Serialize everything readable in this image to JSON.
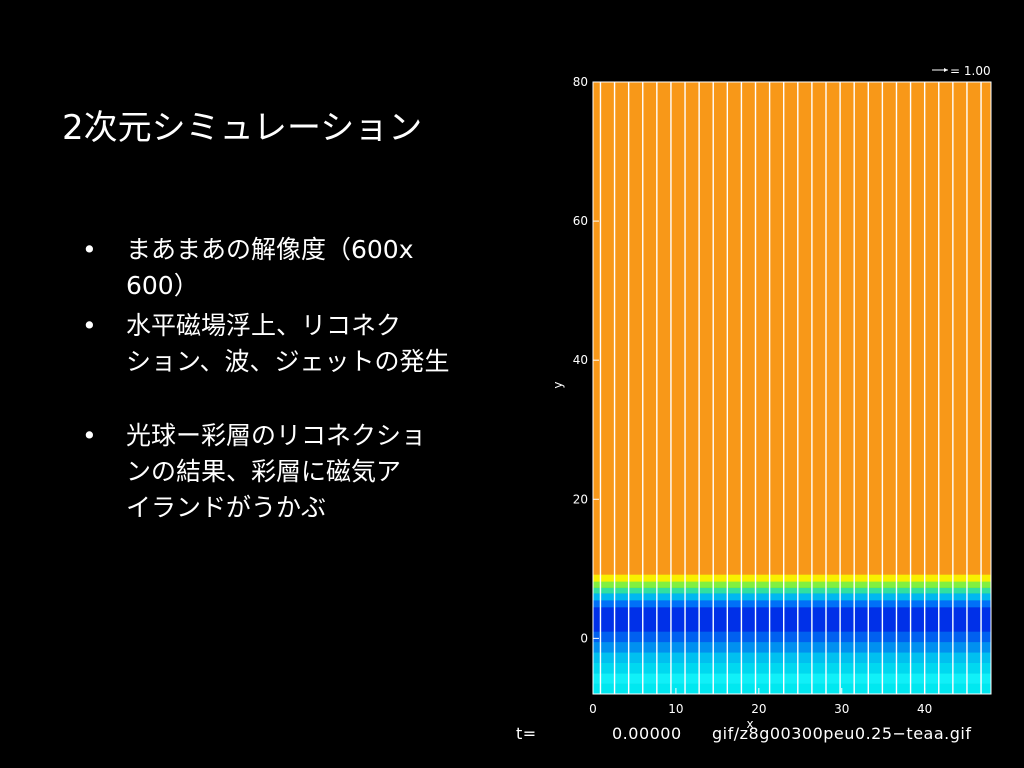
{
  "slide": {
    "title": "2次元シミュレーション",
    "bullets": [
      {
        "lines": [
          "まあまあの解像度（600x",
          "600）"
        ]
      },
      {
        "lines": [
          "水平磁場浮上、リコネク",
          "ション、波、ジェットの発生"
        ]
      },
      {
        "lines": [
          "光球ー彩層のリコネクショ",
          "ンの結果、彩層に磁気ア",
          "イランドがうかぶ"
        ]
      }
    ],
    "bullet_symbol": "•"
  },
  "figure": {
    "ref_vector_label": "= 1.00",
    "xlabel": "x",
    "ylabel": "y",
    "x_ticks": [
      "0",
      "10",
      "20",
      "30",
      "40"
    ],
    "y_ticks": [
      "0",
      "20",
      "40",
      "60",
      "80"
    ],
    "t_label": "t=",
    "t_value": "0.00000",
    "filename": "gif/z8g00300peu0.25−teaa.gif"
  },
  "chart_data": {
    "type": "heatmap",
    "xlim": [
      0,
      48
    ],
    "ylim": [
      -8,
      80
    ],
    "x_ticks": [
      0,
      10,
      20,
      30,
      40
    ],
    "y_ticks": [
      0,
      20,
      40,
      60,
      80
    ],
    "xlabel": "x",
    "ylabel": "y",
    "bands": [
      {
        "y0": -8,
        "y1": -6.5,
        "color": "#00e8f0"
      },
      {
        "y0": -6.5,
        "y1": -5,
        "color": "#10f0f8"
      },
      {
        "y0": -5,
        "y1": -3.5,
        "color": "#00d8f0"
      },
      {
        "y0": -3.5,
        "y1": -2,
        "color": "#00c0f0"
      },
      {
        "y0": -2,
        "y1": -0.5,
        "color": "#0090f0"
      },
      {
        "y0": -0.5,
        "y1": 1,
        "color": "#0060f0"
      },
      {
        "y0": 1,
        "y1": 4.5,
        "color": "#0030e8"
      },
      {
        "y0": 4.5,
        "y1": 5.5,
        "color": "#0070f8"
      },
      {
        "y0": 5.5,
        "y1": 6.5,
        "color": "#00b8f0"
      },
      {
        "y0": 6.5,
        "y1": 7.3,
        "color": "#30e0a0"
      },
      {
        "y0": 7.3,
        "y1": 8.2,
        "color": "#80f040"
      },
      {
        "y0": 8.2,
        "y1": 9.2,
        "color": "#f8f000"
      },
      {
        "y0": 9.2,
        "y1": 80,
        "color": "#f89818"
      }
    ],
    "field_lines_x": [
      0.9,
      2.6,
      4.3,
      6.0,
      7.7,
      9.4,
      11.1,
      12.8,
      14.5,
      16.2,
      17.9,
      19.6,
      21.3,
      23.0,
      24.7,
      26.4,
      28.1,
      29.8,
      31.5,
      33.2,
      34.9,
      36.6,
      38.3,
      40.0,
      41.7,
      43.4,
      45.1,
      46.8
    ],
    "field_line_color": "#ffffff"
  }
}
